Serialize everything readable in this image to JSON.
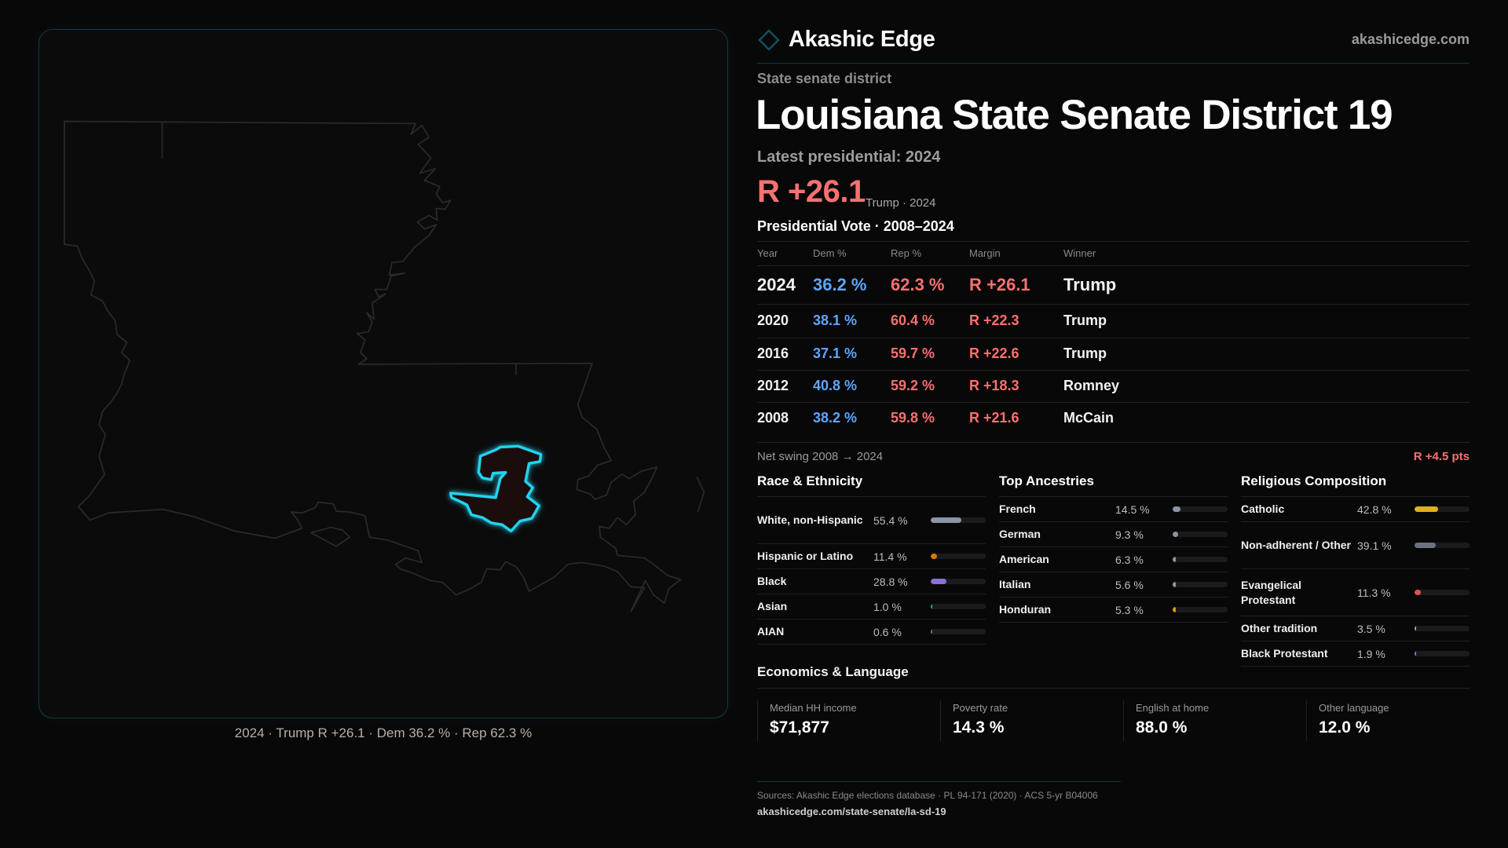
{
  "brand": {
    "name": "Akashic Edge",
    "site": "akashicedge.com",
    "accent": "#22d3ee"
  },
  "header": {
    "kicker": "State senate district",
    "title": "Louisiana State Senate District 19",
    "latest": "Latest presidential: 2024",
    "margin": "R +26.1",
    "margin_sub": "Trump · 2024"
  },
  "votes": {
    "title": "Presidential Vote · 2008–2024",
    "columns": [
      "Year",
      "Dem %",
      "Rep %",
      "Margin",
      "Winner"
    ],
    "rows": [
      {
        "year": "2024",
        "dem": "36.2 %",
        "rep": "62.3 %",
        "margin": "R +26.1",
        "winner": "Trump"
      },
      {
        "year": "2020",
        "dem": "38.1 %",
        "rep": "60.4 %",
        "margin": "R +22.3",
        "winner": "Trump"
      },
      {
        "year": "2016",
        "dem": "37.1 %",
        "rep": "59.7 %",
        "margin": "R +22.6",
        "winner": "Trump"
      },
      {
        "year": "2012",
        "dem": "40.8 %",
        "rep": "59.2 %",
        "margin": "R +18.3",
        "winner": "Romney"
      },
      {
        "year": "2008",
        "dem": "38.2 %",
        "rep": "59.8 %",
        "margin": "R +21.6",
        "winner": "McCain"
      }
    ],
    "swing_label": "Net swing 2008 → 2024",
    "swing_value": "R +4.5 pts"
  },
  "race": {
    "title": "Race & Ethnicity",
    "items": [
      {
        "label": "White, non-Hispanic",
        "value": "55.4 %",
        "pct": 55.4,
        "color": "#8b95a5"
      },
      {
        "label": "Hispanic or Latino",
        "value": "11.4 %",
        "pct": 11.4,
        "color": "#d97706"
      },
      {
        "label": "Black",
        "value": "28.8 %",
        "pct": 28.8,
        "color": "#8b6fd8"
      },
      {
        "label": "Asian",
        "value": "1.0 %",
        "pct": 1.0,
        "color": "#10b981"
      },
      {
        "label": "AIAN",
        "value": "0.6 %",
        "pct": 0.6,
        "color": "#6b7280"
      }
    ]
  },
  "ancestry": {
    "title": "Top Ancestries",
    "items": [
      {
        "label": "French",
        "value": "14.5 %",
        "pct": 14.5,
        "color": "#8b95a5"
      },
      {
        "label": "German",
        "value": "9.3 %",
        "pct": 9.3,
        "color": "#8b95a5"
      },
      {
        "label": "American",
        "value": "6.3 %",
        "pct": 6.3,
        "color": "#8b95a5"
      },
      {
        "label": "Italian",
        "value": "5.6 %",
        "pct": 5.6,
        "color": "#8b95a5"
      },
      {
        "label": "Honduran",
        "value": "5.3 %",
        "pct": 5.3,
        "color": "#d99a0e"
      }
    ]
  },
  "religion": {
    "title": "Religious Composition",
    "items": [
      {
        "label": "Catholic",
        "value": "42.8 %",
        "pct": 42.8,
        "color": "#e0b020"
      },
      {
        "label": "Non-adherent / Other",
        "value": "39.1 %",
        "pct": 39.1,
        "color": "#6b7280"
      },
      {
        "label": "Evangelical Protestant",
        "value": "11.3 %",
        "pct": 11.3,
        "color": "#e05252"
      },
      {
        "label": "Other tradition",
        "value": "3.5 %",
        "pct": 3.5,
        "color": "#9ca3af"
      },
      {
        "label": "Black Protestant",
        "value": "1.9 %",
        "pct": 1.9,
        "color": "#8b6fd8"
      }
    ]
  },
  "economics": {
    "title": "Economics & Language",
    "cards": [
      {
        "label": "Median HH income",
        "value": "$71,877"
      },
      {
        "label": "Poverty rate",
        "value": "14.3 %"
      },
      {
        "label": "English at home",
        "value": "88.0 %"
      },
      {
        "label": "Other language",
        "value": "12.0 %"
      }
    ]
  },
  "map": {
    "caption": "2024 · Trump R +26.1 · Dem 36.2 % · Rep 62.3 %",
    "highlight_color": "#22d3ee"
  },
  "footer": {
    "sources": "Sources: Akashic Edge elections database · PL 94-171 (2020) · ACS 5-yr B04006",
    "url": "akashicedge.com/state-senate/la-sd-19"
  }
}
